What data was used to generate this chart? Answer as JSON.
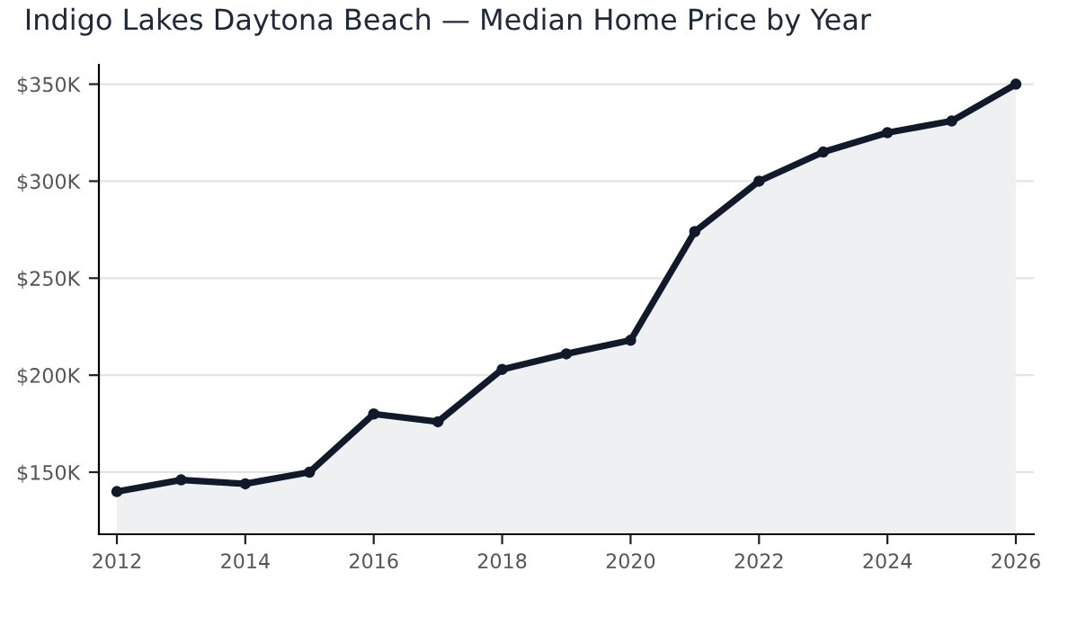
{
  "chart_data": {
    "type": "area",
    "title": "Indigo Lakes Daytona Beach — Median Home Price by Year",
    "x": [
      2012,
      2013,
      2014,
      2015,
      2016,
      2017,
      2018,
      2019,
      2020,
      2021,
      2022,
      2023,
      2024,
      2025,
      2026
    ],
    "series": [
      {
        "color": "#111a2b",
        "values": [
          140,
          146,
          144,
          150,
          180,
          176,
          203,
          211,
          218,
          274,
          300,
          315,
          325,
          331,
          350
        ]
      }
    ],
    "xlim": [
      2011.72,
      2026.28
    ],
    "xticks": [
      2012,
      2014,
      2016,
      2018,
      2020,
      2022,
      2024,
      2026
    ],
    "ylim": [
      118,
      360
    ],
    "yticks": [
      {
        "value": 150,
        "label": "$150K"
      },
      {
        "value": 200,
        "label": "$200K"
      },
      {
        "value": 250,
        "label": "$250K"
      },
      {
        "value": 300,
        "label": "$300K"
      },
      {
        "value": 350,
        "label": "$350K"
      }
    ],
    "grid": "y",
    "marker": "circle",
    "line_style": "solid",
    "legend": false
  }
}
